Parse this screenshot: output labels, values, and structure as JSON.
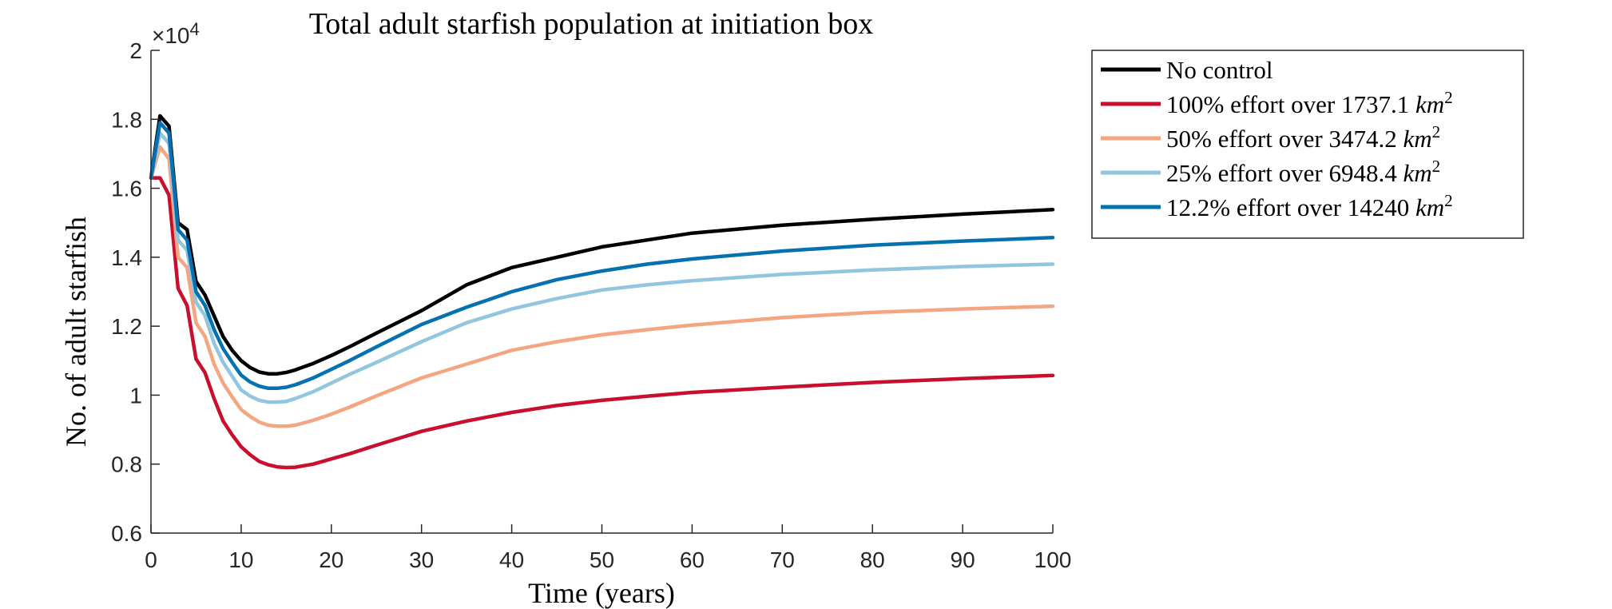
{
  "chart_data": {
    "type": "line",
    "title": "Total adult starfish population at initiation box",
    "xlabel": "Time (years)",
    "ylabel": "No. of adult starfish",
    "y_multiplier": "×10",
    "y_multiplier_exp": "4",
    "xlim": [
      0,
      100
    ],
    "ylim": [
      0.6,
      2
    ],
    "x_ticks": [
      0,
      10,
      20,
      30,
      40,
      50,
      60,
      70,
      80,
      90,
      100
    ],
    "y_ticks": [
      0.6,
      0.8,
      1,
      1.2,
      1.4,
      1.6,
      1.8,
      2
    ],
    "y_tick_labels": [
      "0.6",
      "0.8",
      "1",
      "1.2",
      "1.4",
      "1.6",
      "1.8",
      "2"
    ],
    "legend_position": "outside-top-right",
    "series": [
      {
        "name": "No control",
        "color": "#000000",
        "x": [
          0,
          1,
          2,
          3,
          4,
          5,
          6,
          7,
          8,
          9,
          10,
          11,
          12,
          13,
          14,
          15,
          16,
          18,
          20,
          22,
          25,
          30,
          35,
          40,
          45,
          50,
          55,
          60,
          70,
          80,
          90,
          100
        ],
        "y": [
          1.63,
          1.81,
          1.78,
          1.5,
          1.48,
          1.33,
          1.29,
          1.23,
          1.17,
          1.13,
          1.1,
          1.08,
          1.067,
          1.062,
          1.062,
          1.066,
          1.073,
          1.092,
          1.115,
          1.14,
          1.18,
          1.245,
          1.32,
          1.37,
          1.4,
          1.43,
          1.45,
          1.47,
          1.493,
          1.51,
          1.525,
          1.538
        ]
      },
      {
        "name": "100% effort over 1737.1 ",
        "name_unit": "km",
        "name_exp": "2",
        "color": "#c8102e",
        "x": [
          0,
          1,
          2,
          3,
          4,
          5,
          6,
          7,
          8,
          9,
          10,
          11,
          12,
          13,
          14,
          15,
          16,
          18,
          20,
          22,
          25,
          30,
          35,
          40,
          45,
          50,
          55,
          60,
          70,
          80,
          90,
          100
        ],
        "y": [
          1.63,
          1.63,
          1.58,
          1.31,
          1.26,
          1.105,
          1.065,
          0.99,
          0.925,
          0.885,
          0.85,
          0.827,
          0.808,
          0.798,
          0.792,
          0.79,
          0.791,
          0.8,
          0.815,
          0.83,
          0.855,
          0.895,
          0.925,
          0.95,
          0.97,
          0.985,
          0.997,
          1.008,
          1.023,
          1.037,
          1.048,
          1.057
        ]
      },
      {
        "name": "50% effort over 3474.2 ",
        "name_unit": "km",
        "name_exp": "2",
        "color": "#f4a582",
        "x": [
          0,
          1,
          2,
          3,
          4,
          5,
          6,
          7,
          8,
          9,
          10,
          11,
          12,
          13,
          14,
          15,
          16,
          18,
          20,
          22,
          25,
          30,
          35,
          40,
          45,
          50,
          55,
          60,
          70,
          80,
          90,
          100
        ],
        "y": [
          1.63,
          1.72,
          1.685,
          1.4,
          1.37,
          1.21,
          1.17,
          1.09,
          1.035,
          0.995,
          0.958,
          0.938,
          0.922,
          0.913,
          0.91,
          0.91,
          0.913,
          0.927,
          0.945,
          0.965,
          0.998,
          1.05,
          1.09,
          1.13,
          1.155,
          1.175,
          1.19,
          1.203,
          1.225,
          1.24,
          1.25,
          1.258
        ]
      },
      {
        "name": "25% effort over 6948.4 ",
        "name_unit": "km",
        "name_exp": "2",
        "color": "#92c5de",
        "x": [
          0,
          1,
          2,
          3,
          4,
          5,
          6,
          7,
          8,
          9,
          10,
          11,
          12,
          13,
          14,
          15,
          16,
          18,
          20,
          22,
          25,
          30,
          35,
          40,
          45,
          50,
          55,
          60,
          70,
          80,
          90,
          100
        ],
        "y": [
          1.63,
          1.76,
          1.73,
          1.45,
          1.42,
          1.27,
          1.23,
          1.15,
          1.095,
          1.055,
          1.015,
          0.997,
          0.985,
          0.98,
          0.98,
          0.982,
          0.99,
          1.01,
          1.035,
          1.06,
          1.095,
          1.155,
          1.21,
          1.25,
          1.28,
          1.305,
          1.32,
          1.332,
          1.35,
          1.363,
          1.373,
          1.38
        ]
      },
      {
        "name": "12.2% effort over 14240 ",
        "name_unit": "km",
        "name_exp": "2",
        "color": "#0571b0",
        "x": [
          0,
          1,
          2,
          3,
          4,
          5,
          6,
          7,
          8,
          9,
          10,
          11,
          12,
          13,
          14,
          15,
          16,
          18,
          20,
          22,
          25,
          30,
          35,
          40,
          45,
          50,
          55,
          60,
          70,
          80,
          90,
          100
        ],
        "y": [
          1.63,
          1.79,
          1.76,
          1.48,
          1.45,
          1.3,
          1.26,
          1.19,
          1.135,
          1.095,
          1.058,
          1.038,
          1.026,
          1.02,
          1.02,
          1.023,
          1.03,
          1.05,
          1.075,
          1.1,
          1.14,
          1.205,
          1.255,
          1.3,
          1.335,
          1.36,
          1.38,
          1.395,
          1.418,
          1.435,
          1.447,
          1.457
        ]
      }
    ]
  }
}
